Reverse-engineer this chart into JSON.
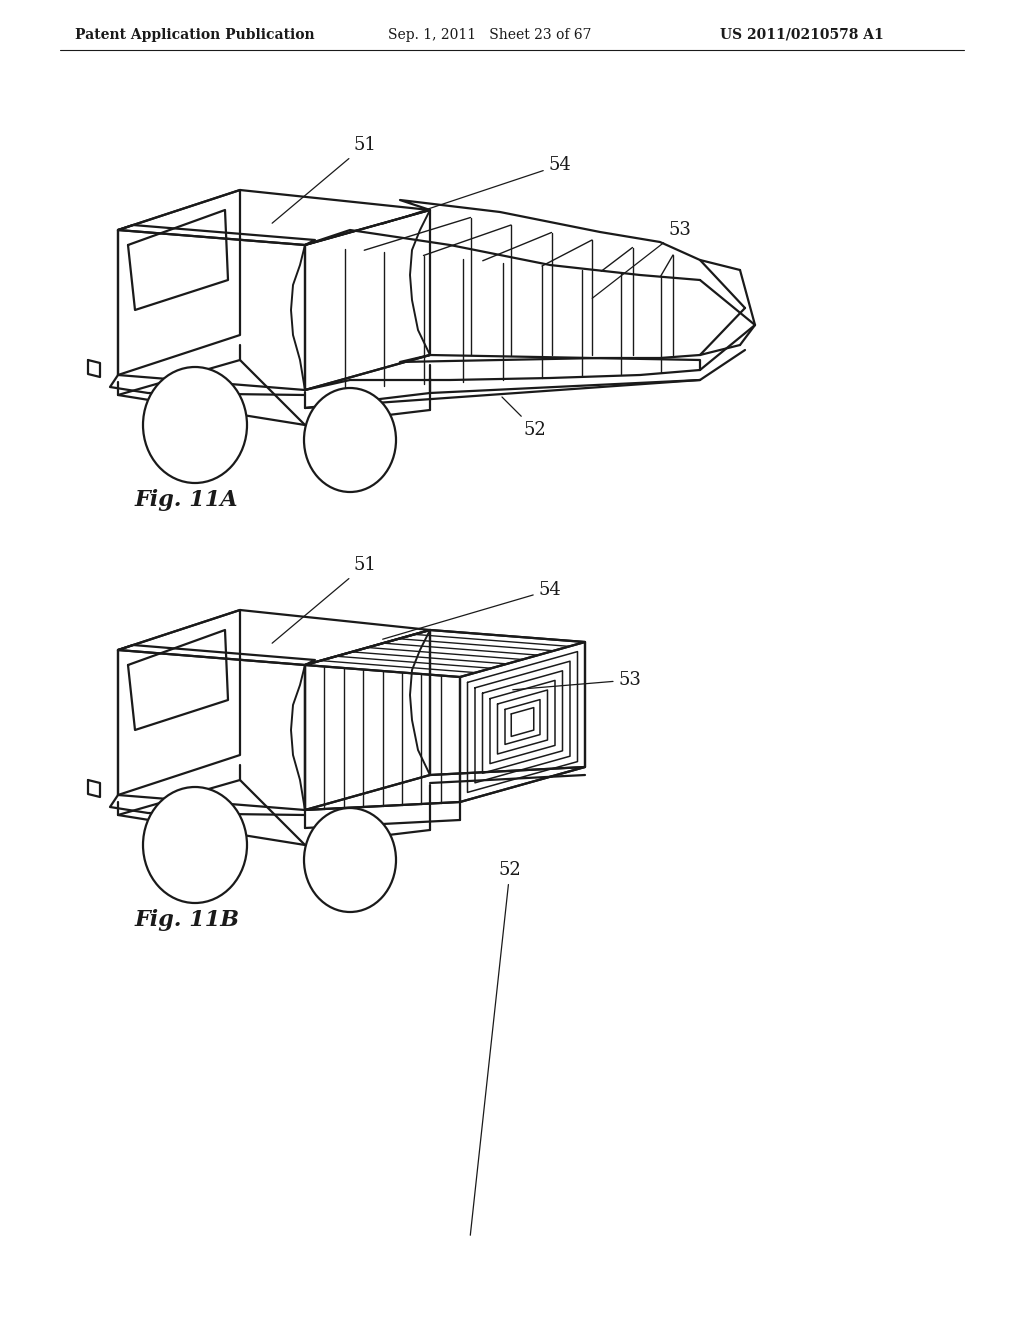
{
  "background_color": "#ffffff",
  "header_left": "Patent Application Publication",
  "header_mid": "Sep. 1, 2011   Sheet 23 of 67",
  "header_right": "US 2011/0210578 A1",
  "line_color": "#1a1a1a",
  "fig_label_A": "Fig. 11A",
  "fig_label_B": "Fig. 11B"
}
